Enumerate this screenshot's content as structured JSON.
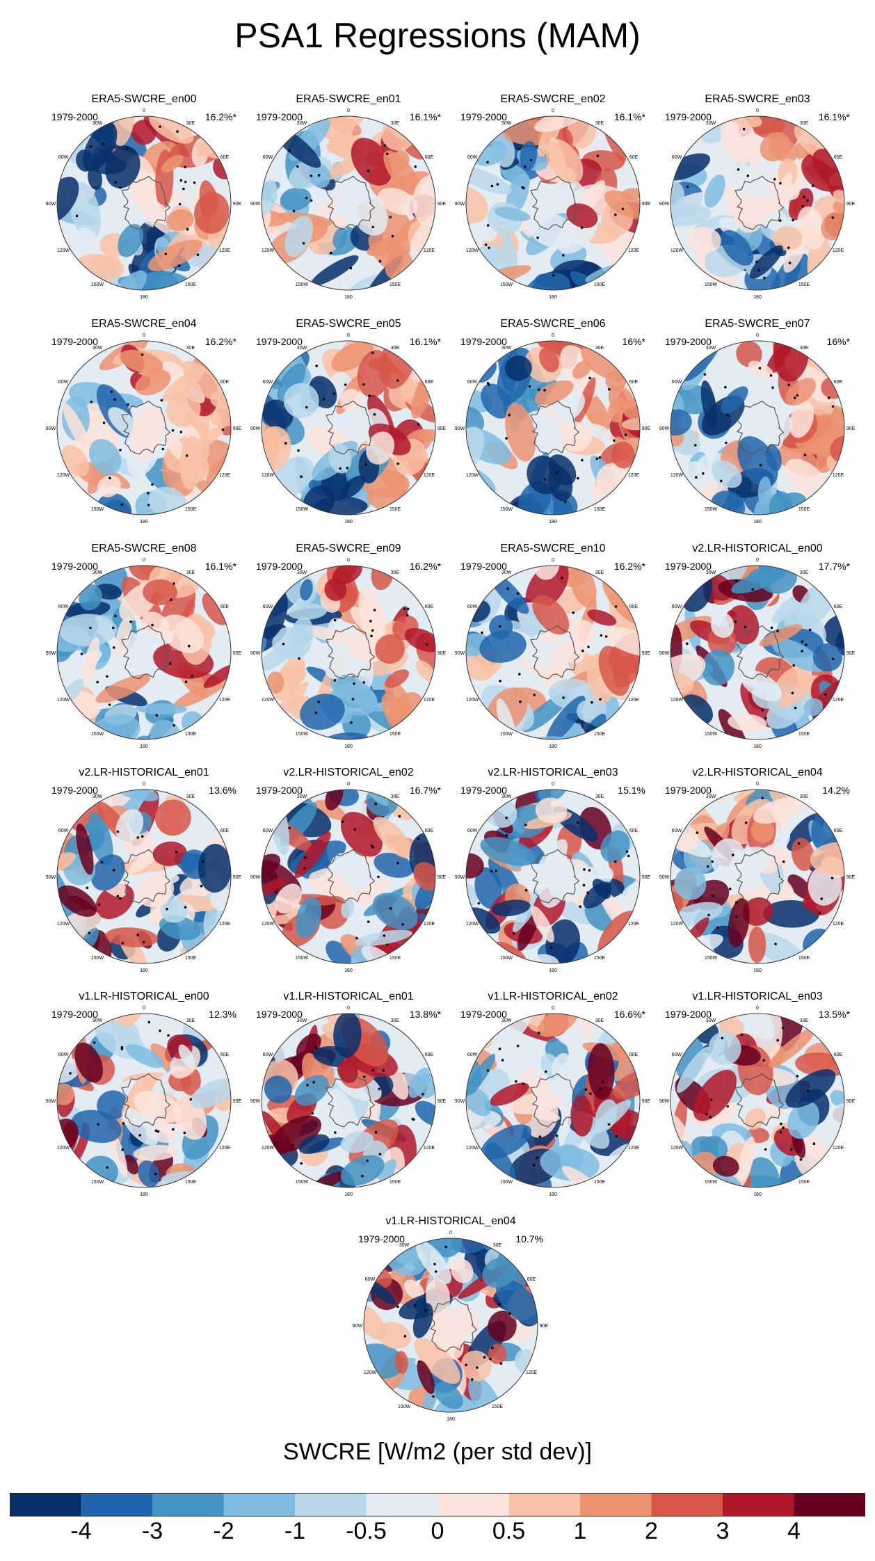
{
  "title": "PSA1 Regressions (MAM)",
  "colorbar": {
    "title": "SWCRE [W/m2 (per std dev)]",
    "labels": [
      "-4",
      "-3",
      "-2",
      "-1",
      "-0.5",
      "0",
      "0.5",
      "1",
      "2",
      "3",
      "4"
    ],
    "colors": [
      "#08306b",
      "#2166ac",
      "#4393c3",
      "#7fbcdf",
      "#b8d8ea",
      "#e3ecf3",
      "#fbe4dc",
      "#f9c2a6",
      "#ec9372",
      "#d6574a",
      "#b0182a",
      "#67001f"
    ]
  },
  "panel_common": {
    "period": "1979-2000",
    "lon_labels": [
      "0",
      "30E",
      "60E",
      "90E",
      "120E",
      "150E",
      "180",
      "150W",
      "120W",
      "90W",
      "60W",
      "30W"
    ]
  },
  "chart_data": {
    "type": "heatmap",
    "description_units": "regression of SWCRE on PSA1 index, polar stereographic Southern Hemisphere maps",
    "panels": [
      {
        "name": "ERA5-SWCRE_en00",
        "pct": "16.2%*"
      },
      {
        "name": "ERA5-SWCRE_en01",
        "pct": "16.1%*"
      },
      {
        "name": "ERA5-SWCRE_en02",
        "pct": "16.1%*"
      },
      {
        "name": "ERA5-SWCRE_en03",
        "pct": "16.1%*"
      },
      {
        "name": "ERA5-SWCRE_en04",
        "pct": "16.2%*"
      },
      {
        "name": "ERA5-SWCRE_en05",
        "pct": "16.1%*"
      },
      {
        "name": "ERA5-SWCRE_en06",
        "pct": "16%*"
      },
      {
        "name": "ERA5-SWCRE_en07",
        "pct": "16%*"
      },
      {
        "name": "ERA5-SWCRE_en08",
        "pct": "16.1%*"
      },
      {
        "name": "ERA5-SWCRE_en09",
        "pct": "16.2%*"
      },
      {
        "name": "ERA5-SWCRE_en10",
        "pct": "16.2%*"
      },
      {
        "name": "v2.LR-HISTORICAL_en00",
        "pct": "17.7%*"
      },
      {
        "name": "v2.LR-HISTORICAL_en01",
        "pct": "13.6%"
      },
      {
        "name": "v2.LR-HISTORICAL_en02",
        "pct": "16.7%*"
      },
      {
        "name": "v2.LR-HISTORICAL_en03",
        "pct": "15.1%"
      },
      {
        "name": "v2.LR-HISTORICAL_en04",
        "pct": "14.2%"
      },
      {
        "name": "v1.LR-HISTORICAL_en00",
        "pct": "12.3%"
      },
      {
        "name": "v1.LR-HISTORICAL_en01",
        "pct": "13.8%*"
      },
      {
        "name": "v1.LR-HISTORICAL_en02",
        "pct": "16.6%*"
      },
      {
        "name": "v1.LR-HISTORICAL_en03",
        "pct": "13.5%*"
      },
      {
        "name": "v1.LR-HISTORICAL_en04",
        "pct": "10.7%"
      }
    ]
  }
}
